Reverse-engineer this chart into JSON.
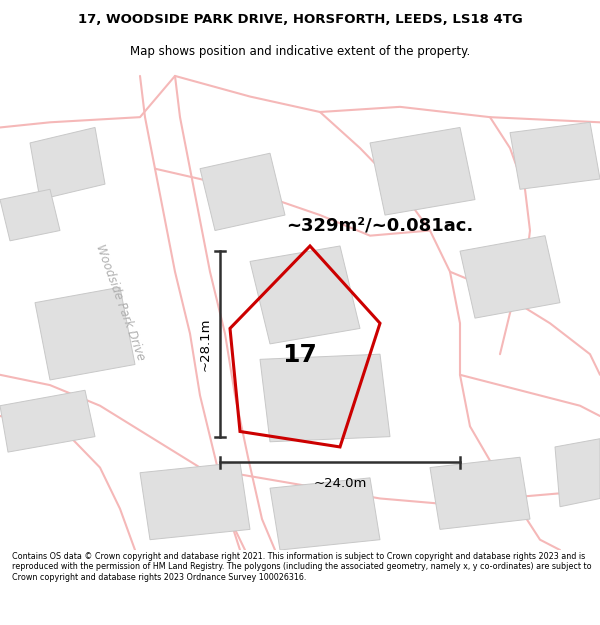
{
  "title_line1": "17, WOODSIDE PARK DRIVE, HORSFORTH, LEEDS, LS18 4TG",
  "title_line2": "Map shows position and indicative extent of the property.",
  "footer_text": "Contains OS data © Crown copyright and database right 2021. This information is subject to Crown copyright and database rights 2023 and is reproduced with the permission of HM Land Registry. The polygons (including the associated geometry, namely x, y co-ordinates) are subject to Crown copyright and database rights 2023 Ordnance Survey 100026316.",
  "road_color": "#f5b8b8",
  "building_facecolor": "#e0e0e0",
  "building_edgecolor": "#c8c8c8",
  "property_color": "#cc0000",
  "dim_color": "#303030",
  "street_label": "Woodside Park Drive",
  "property_label": "17",
  "area_label": "~329m²/~0.081ac.",
  "dim_v_label": "~28.1m",
  "dim_h_label": "~24.0m",
  "title_fontsize": 9.5,
  "subtitle_fontsize": 8.5,
  "footer_fontsize": 5.8
}
